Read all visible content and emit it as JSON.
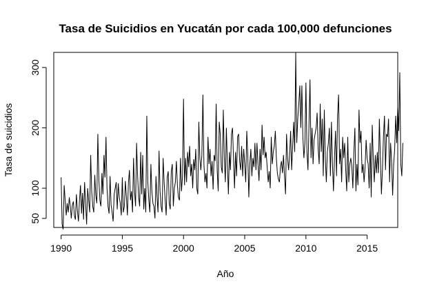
{
  "chart_data": {
    "type": "line",
    "title": "Tasa de Suicidios en Yucatán por cada 100,000 defunciones",
    "xlabel": "Año",
    "ylabel": "Tasa de suicidios",
    "xlim": [
      1989.4,
      2017.5
    ],
    "ylim": [
      35,
      325
    ],
    "xticks": [
      1990,
      1995,
      2000,
      2005,
      2010,
      2015
    ],
    "yticks": [
      50,
      100,
      200,
      300
    ],
    "grid": false,
    "frequency": "monthly",
    "start": 1990.0,
    "series": [
      {
        "values": [
          118,
          40,
          32,
          105,
          80,
          55,
          75,
          60,
          85,
          70,
          50,
          72,
          78,
          55,
          48,
          90,
          62,
          45,
          80,
          105,
          58,
          92,
          48,
          110,
          75,
          40,
          100,
          80,
          60,
          155,
          95,
          70,
          60,
          122,
          88,
          75,
          190,
          115,
          80,
          70,
          125,
          90,
          155,
          118,
          185,
          100,
          70,
          58,
          120,
          72,
          60,
          45,
          90,
          100,
          110,
          65,
          108,
          85,
          75,
          55,
          118,
          60,
          70,
          112,
          85,
          55,
          110,
          130,
          80,
          95,
          60,
          150,
          95,
          70,
          175,
          120,
          85,
          70,
          160,
          90,
          155,
          65,
          100,
          60,
          220,
          110,
          80,
          60,
          140,
          95,
          75,
          70,
          50,
          120,
          85,
          60,
          162,
          95,
          70,
          60,
          150,
          110,
          80,
          55,
          118,
          128,
          75,
          65,
          128,
          140,
          70,
          100,
          110,
          145,
          105,
          85,
          80,
          150,
          95,
          120,
          248,
          105,
          150,
          110,
          160,
          135,
          170,
          120,
          140,
          100,
          148,
          130,
          165,
          100,
          90,
          210,
          150,
          130,
          155,
          255,
          140,
          110,
          125,
          100,
          185,
          140,
          165,
          120,
          145,
          98,
          155,
          145,
          240,
          130,
          95,
          210,
          190,
          135,
          125,
          230,
          150,
          110,
          200,
          140,
          90,
          160,
          130,
          190,
          200,
          150,
          100,
          160,
          120,
          185,
          190,
          145,
          130,
          170,
          120,
          165,
          140,
          110,
          195,
          155,
          85,
          140,
          165,
          120,
          150,
          135,
          175,
          130,
          175,
          140,
          112,
          165,
          130,
          205,
          155,
          185,
          150,
          160,
          135,
          110,
          128,
          100,
          185,
          140,
          160,
          170,
          195,
          150,
          125,
          115,
          110,
          135,
          145,
          125,
          155,
          120,
          90,
          190,
          150,
          130,
          155,
          195,
          130,
          170,
          210,
          160,
          325,
          175,
          215,
          240,
          270,
          200,
          270,
          185,
          150,
          175,
          275,
          160,
          130,
          205,
          280,
          150,
          200,
          140,
          180,
          190,
          200,
          225,
          165,
          140,
          240,
          160,
          215,
          120,
          230,
          150,
          110,
          160,
          175,
          200,
          120,
          210,
          140,
          95,
          150,
          195,
          120,
          220,
          255,
          140,
          165,
          110,
          185,
          150,
          175,
          130,
          95,
          185,
          110,
          140,
          150,
          135,
          100,
          160,
          200,
          95,
          140,
          105,
          230,
          175,
          195,
          125,
          140,
          110,
          135,
          180,
          150,
          140,
          100,
          175,
          85,
          205,
          150,
          110,
          155,
          125,
          160,
          125,
          215,
          150,
          90,
          130,
          185,
          220,
          130,
          190,
          185,
          215,
          110,
          175,
          145,
          88,
          140,
          165,
          220,
          175,
          235,
          195,
          292,
          140,
          120,
          175
        ]
      }
    ]
  }
}
